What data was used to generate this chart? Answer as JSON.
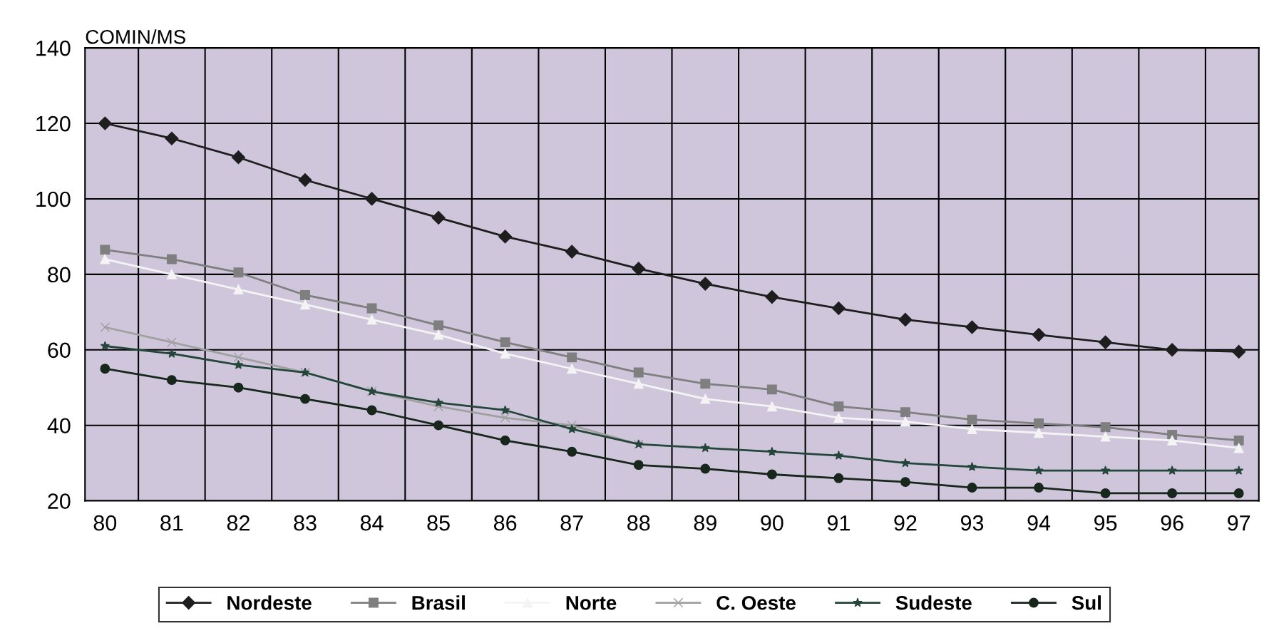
{
  "chart_data": {
    "type": "line",
    "ylabel": "COMIN/MS",
    "categories": [
      "80",
      "81",
      "82",
      "83",
      "84",
      "85",
      "86",
      "87",
      "88",
      "89",
      "90",
      "91",
      "92",
      "93",
      "94",
      "95",
      "96",
      "97"
    ],
    "ylim": [
      20,
      140
    ],
    "yticks": [
      20,
      40,
      60,
      80,
      100,
      120,
      140
    ],
    "grid": true,
    "legend": "bottom",
    "series": [
      {
        "name": "Nordeste",
        "color": "#1e1e1e",
        "marker": "diamond",
        "values": [
          120,
          116,
          111,
          105,
          100,
          95,
          90,
          86,
          81.5,
          77.5,
          74,
          71,
          68,
          66,
          64,
          62,
          60,
          59.5
        ]
      },
      {
        "name": "Brasil",
        "color": "#7f7f7f",
        "marker": "square",
        "values": [
          86.5,
          84,
          80.5,
          74.5,
          71,
          66.5,
          62,
          58,
          54,
          51,
          49.5,
          45,
          43.5,
          41.5,
          40.5,
          39.5,
          37.5,
          36
        ]
      },
      {
        "name": "Norte",
        "color": "#f4f4f4",
        "marker": "triangle",
        "values": [
          84,
          80,
          76,
          72,
          68,
          64,
          59,
          55,
          51,
          47,
          45,
          42,
          41,
          39,
          38,
          37,
          36,
          34
        ]
      },
      {
        "name": "C. Oeste",
        "color": "#a0a0a0",
        "marker": "cross",
        "values": [
          66,
          62,
          58,
          54,
          49,
          45,
          42,
          40,
          35,
          null,
          null,
          null,
          null,
          null,
          null,
          null,
          null,
          null
        ]
      },
      {
        "name": "Sudeste",
        "color": "#25463a",
        "marker": "star",
        "values": [
          61,
          59,
          56,
          54,
          49,
          46,
          44,
          39,
          35,
          34,
          33,
          32,
          30,
          29,
          28,
          28,
          28,
          28
        ]
      },
      {
        "name": "Sul",
        "color": "#17271b",
        "marker": "circle",
        "values": [
          55,
          52,
          50,
          47,
          44,
          40,
          36,
          33,
          29.5,
          28.5,
          27,
          26,
          25,
          23.5,
          23.5,
          22,
          22,
          22
        ]
      }
    ]
  }
}
